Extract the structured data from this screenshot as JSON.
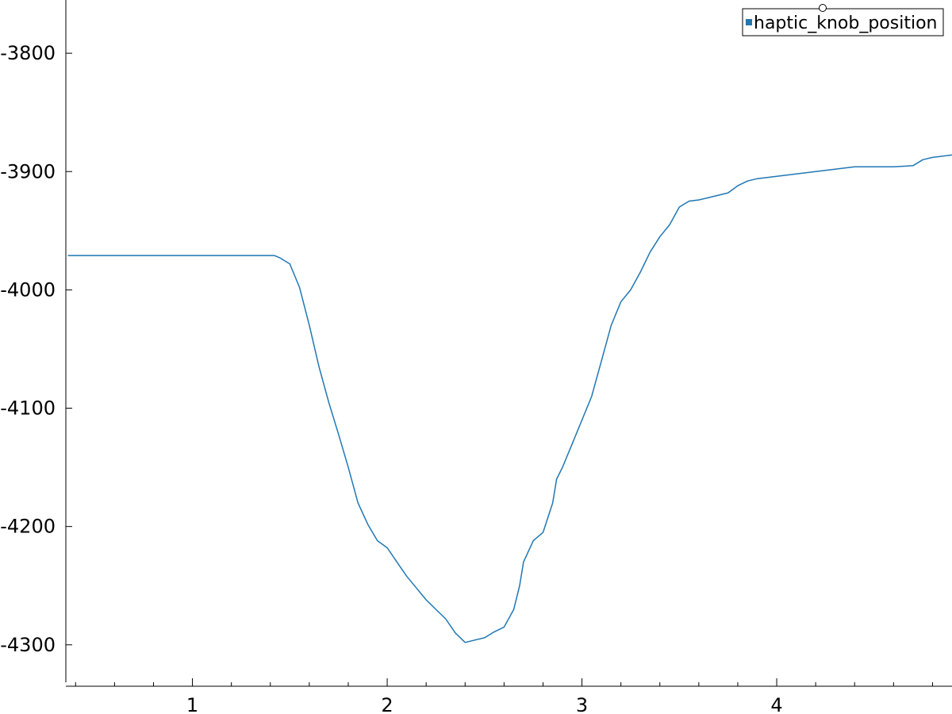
{
  "chart_data": {
    "type": "line",
    "title": "",
    "xlabel": "",
    "ylabel": "",
    "xlim": [
      0.35,
      4.9
    ],
    "ylim": [
      -4335,
      -3755
    ],
    "x_ticks": [
      1,
      2,
      3,
      4
    ],
    "x_tick_labels": [
      "1",
      "2",
      "3",
      "4"
    ],
    "y_ticks": [
      -3800,
      -3900,
      -4000,
      -4100,
      -4200,
      -4300
    ],
    "y_tick_labels": [
      "-3800",
      "-3900",
      -4000,
      "-4100",
      "-4200",
      "-4300"
    ],
    "legend_position": "top-right",
    "grid": false,
    "colors": {
      "series": "#1f77b4",
      "axis": "#000000",
      "background": "#ffffff"
    },
    "series": [
      {
        "name": "haptic_knob_position",
        "x": [
          0.36,
          1.42,
          1.45,
          1.5,
          1.55,
          1.6,
          1.65,
          1.7,
          1.75,
          1.8,
          1.85,
          1.9,
          1.95,
          2.0,
          2.05,
          2.1,
          2.15,
          2.2,
          2.25,
          2.3,
          2.35,
          2.4,
          2.45,
          2.5,
          2.52,
          2.55,
          2.6,
          2.65,
          2.68,
          2.7,
          2.75,
          2.8,
          2.85,
          2.87,
          2.9,
          2.95,
          3.0,
          3.05,
          3.1,
          3.15,
          3.2,
          3.25,
          3.3,
          3.35,
          3.4,
          3.45,
          3.5,
          3.55,
          3.6,
          3.65,
          3.7,
          3.75,
          3.8,
          3.85,
          3.9,
          4.0,
          4.1,
          4.2,
          4.3,
          4.4,
          4.5,
          4.6,
          4.7,
          4.75,
          4.8,
          4.9
        ],
        "values": [
          -3971,
          -3971,
          -3973,
          -3978,
          -3998,
          -4030,
          -4065,
          -4095,
          -4122,
          -4150,
          -4180,
          -4198,
          -4212,
          -4218,
          -4230,
          -4242,
          -4252,
          -4262,
          -4270,
          -4278,
          -4290,
          -4298,
          -4296,
          -4294,
          -4292,
          -4289,
          -4285,
          -4270,
          -4250,
          -4230,
          -4212,
          -4205,
          -4180,
          -4160,
          -4150,
          -4130,
          -4110,
          -4090,
          -4060,
          -4030,
          -4010,
          -4000,
          -3985,
          -3968,
          -3955,
          -3945,
          -3930,
          -3925,
          -3924,
          -3922,
          -3920,
          -3918,
          -3912,
          -3908,
          -3906,
          -3904,
          -3902,
          -3900,
          -3898,
          -3896,
          -3896,
          -3896,
          -3895,
          -3890,
          -3888,
          -3886
        ]
      }
    ]
  }
}
